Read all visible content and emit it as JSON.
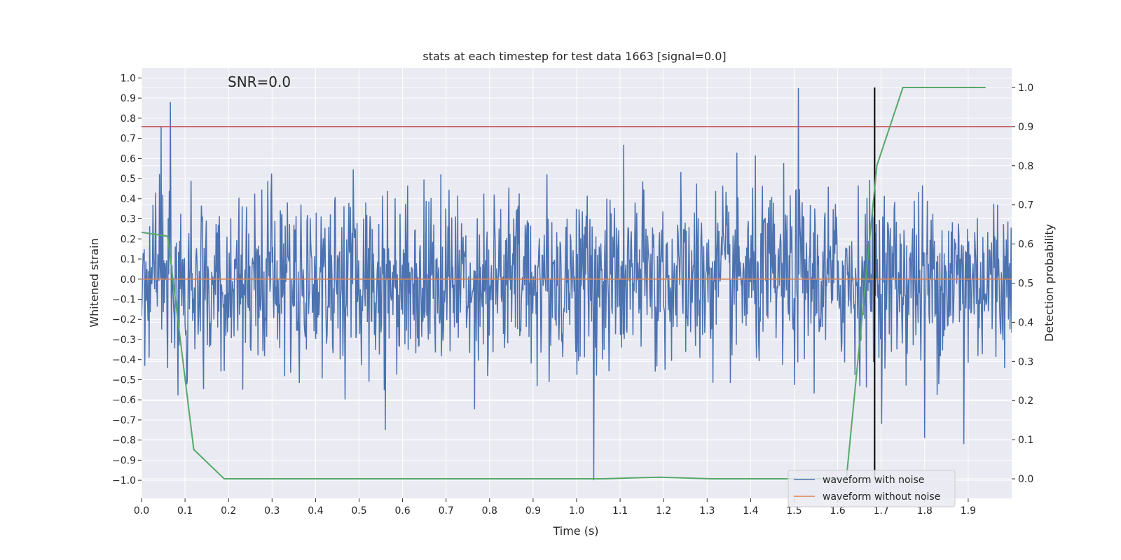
{
  "chart_data": {
    "type": "line",
    "title": "stats at each timestep for test data 1663 [signal=0.0]",
    "annotation": "SNR=0.0",
    "xlabel": "Time (s)",
    "ylabel_left": "Whitened strain",
    "ylabel_right": "Detection probability",
    "xlim": [
      0.0,
      2.0
    ],
    "ylim_left": [
      -1.09,
      1.05
    ],
    "ylim_right": [
      -0.05,
      1.05
    ],
    "x_ticks": [
      "0.0",
      "0.1",
      "0.2",
      "0.3",
      "0.4",
      "0.5",
      "0.6",
      "0.7",
      "0.8",
      "0.9",
      "1.0",
      "1.1",
      "1.2",
      "1.3",
      "1.4",
      "1.5",
      "1.6",
      "1.7",
      "1.8",
      "1.9"
    ],
    "y_ticks_left": [
      "1.0",
      "0.9",
      "0.8",
      "0.7",
      "0.6",
      "0.5",
      "0.4",
      "0.3",
      "0.2",
      "0.1",
      "0.0",
      "−0.1",
      "−0.2",
      "−0.3",
      "−0.4",
      "−0.5",
      "−0.6",
      "−0.7",
      "−0.8",
      "−0.9",
      "−1.0"
    ],
    "y_ticks_right": [
      "1.0",
      "0.9",
      "0.8",
      "0.7",
      "0.6",
      "0.5",
      "0.4",
      "0.3",
      "0.2",
      "0.1",
      "0.0"
    ],
    "grid": true,
    "background": "#eaeaf2",
    "legend": {
      "placement": "lower-right",
      "entries": [
        {
          "label": "waveform with noise",
          "color": "#4c72b0"
        },
        {
          "label": "waveform without noise",
          "color": "#dd8452"
        }
      ]
    },
    "series": [
      {
        "name": "waveform with noise",
        "axis": "left",
        "color": "#4c72b0",
        "noise_sd": 0.22,
        "sample_count": 1600,
        "highlighted_peaks": [
          {
            "x": 0.066,
            "y": 0.88
          },
          {
            "x": 0.045,
            "y": 0.76
          },
          {
            "x": 1.51,
            "y": 0.95
          },
          {
            "x": 1.04,
            "y": -1.0
          },
          {
            "x": 1.89,
            "y": -0.82
          },
          {
            "x": 1.8,
            "y": -0.79
          },
          {
            "x": 0.56,
            "y": -0.75
          }
        ]
      },
      {
        "name": "waveform without noise",
        "axis": "left",
        "color": "#dd8452",
        "x": [
          0.0,
          2.0
        ],
        "y": [
          0.0,
          0.0
        ]
      },
      {
        "axis": "right",
        "color": "#55a868",
        "x": [
          0.0,
          0.06,
          0.12,
          0.19,
          0.3,
          0.6,
          0.9,
          1.0,
          1.06,
          1.12,
          1.19,
          1.31,
          1.44,
          1.56,
          1.62,
          1.69,
          1.75,
          1.94
        ],
        "y": [
          0.63,
          0.62,
          0.075,
          0.0,
          0.0,
          0.0,
          0.0,
          0.0,
          0.0,
          0.002,
          0.004,
          0.0,
          0.0,
          0.0,
          0.0,
          0.8,
          1.0,
          1.0
        ]
      }
    ],
    "reference_lines": [
      {
        "orientation": "horizontal",
        "axis": "right",
        "value": 0.9,
        "color": "#c44e52"
      },
      {
        "orientation": "vertical",
        "axis": "x",
        "value": 1.685,
        "color": "#000000",
        "y_range_right": [
          0.0,
          1.0
        ]
      }
    ]
  }
}
